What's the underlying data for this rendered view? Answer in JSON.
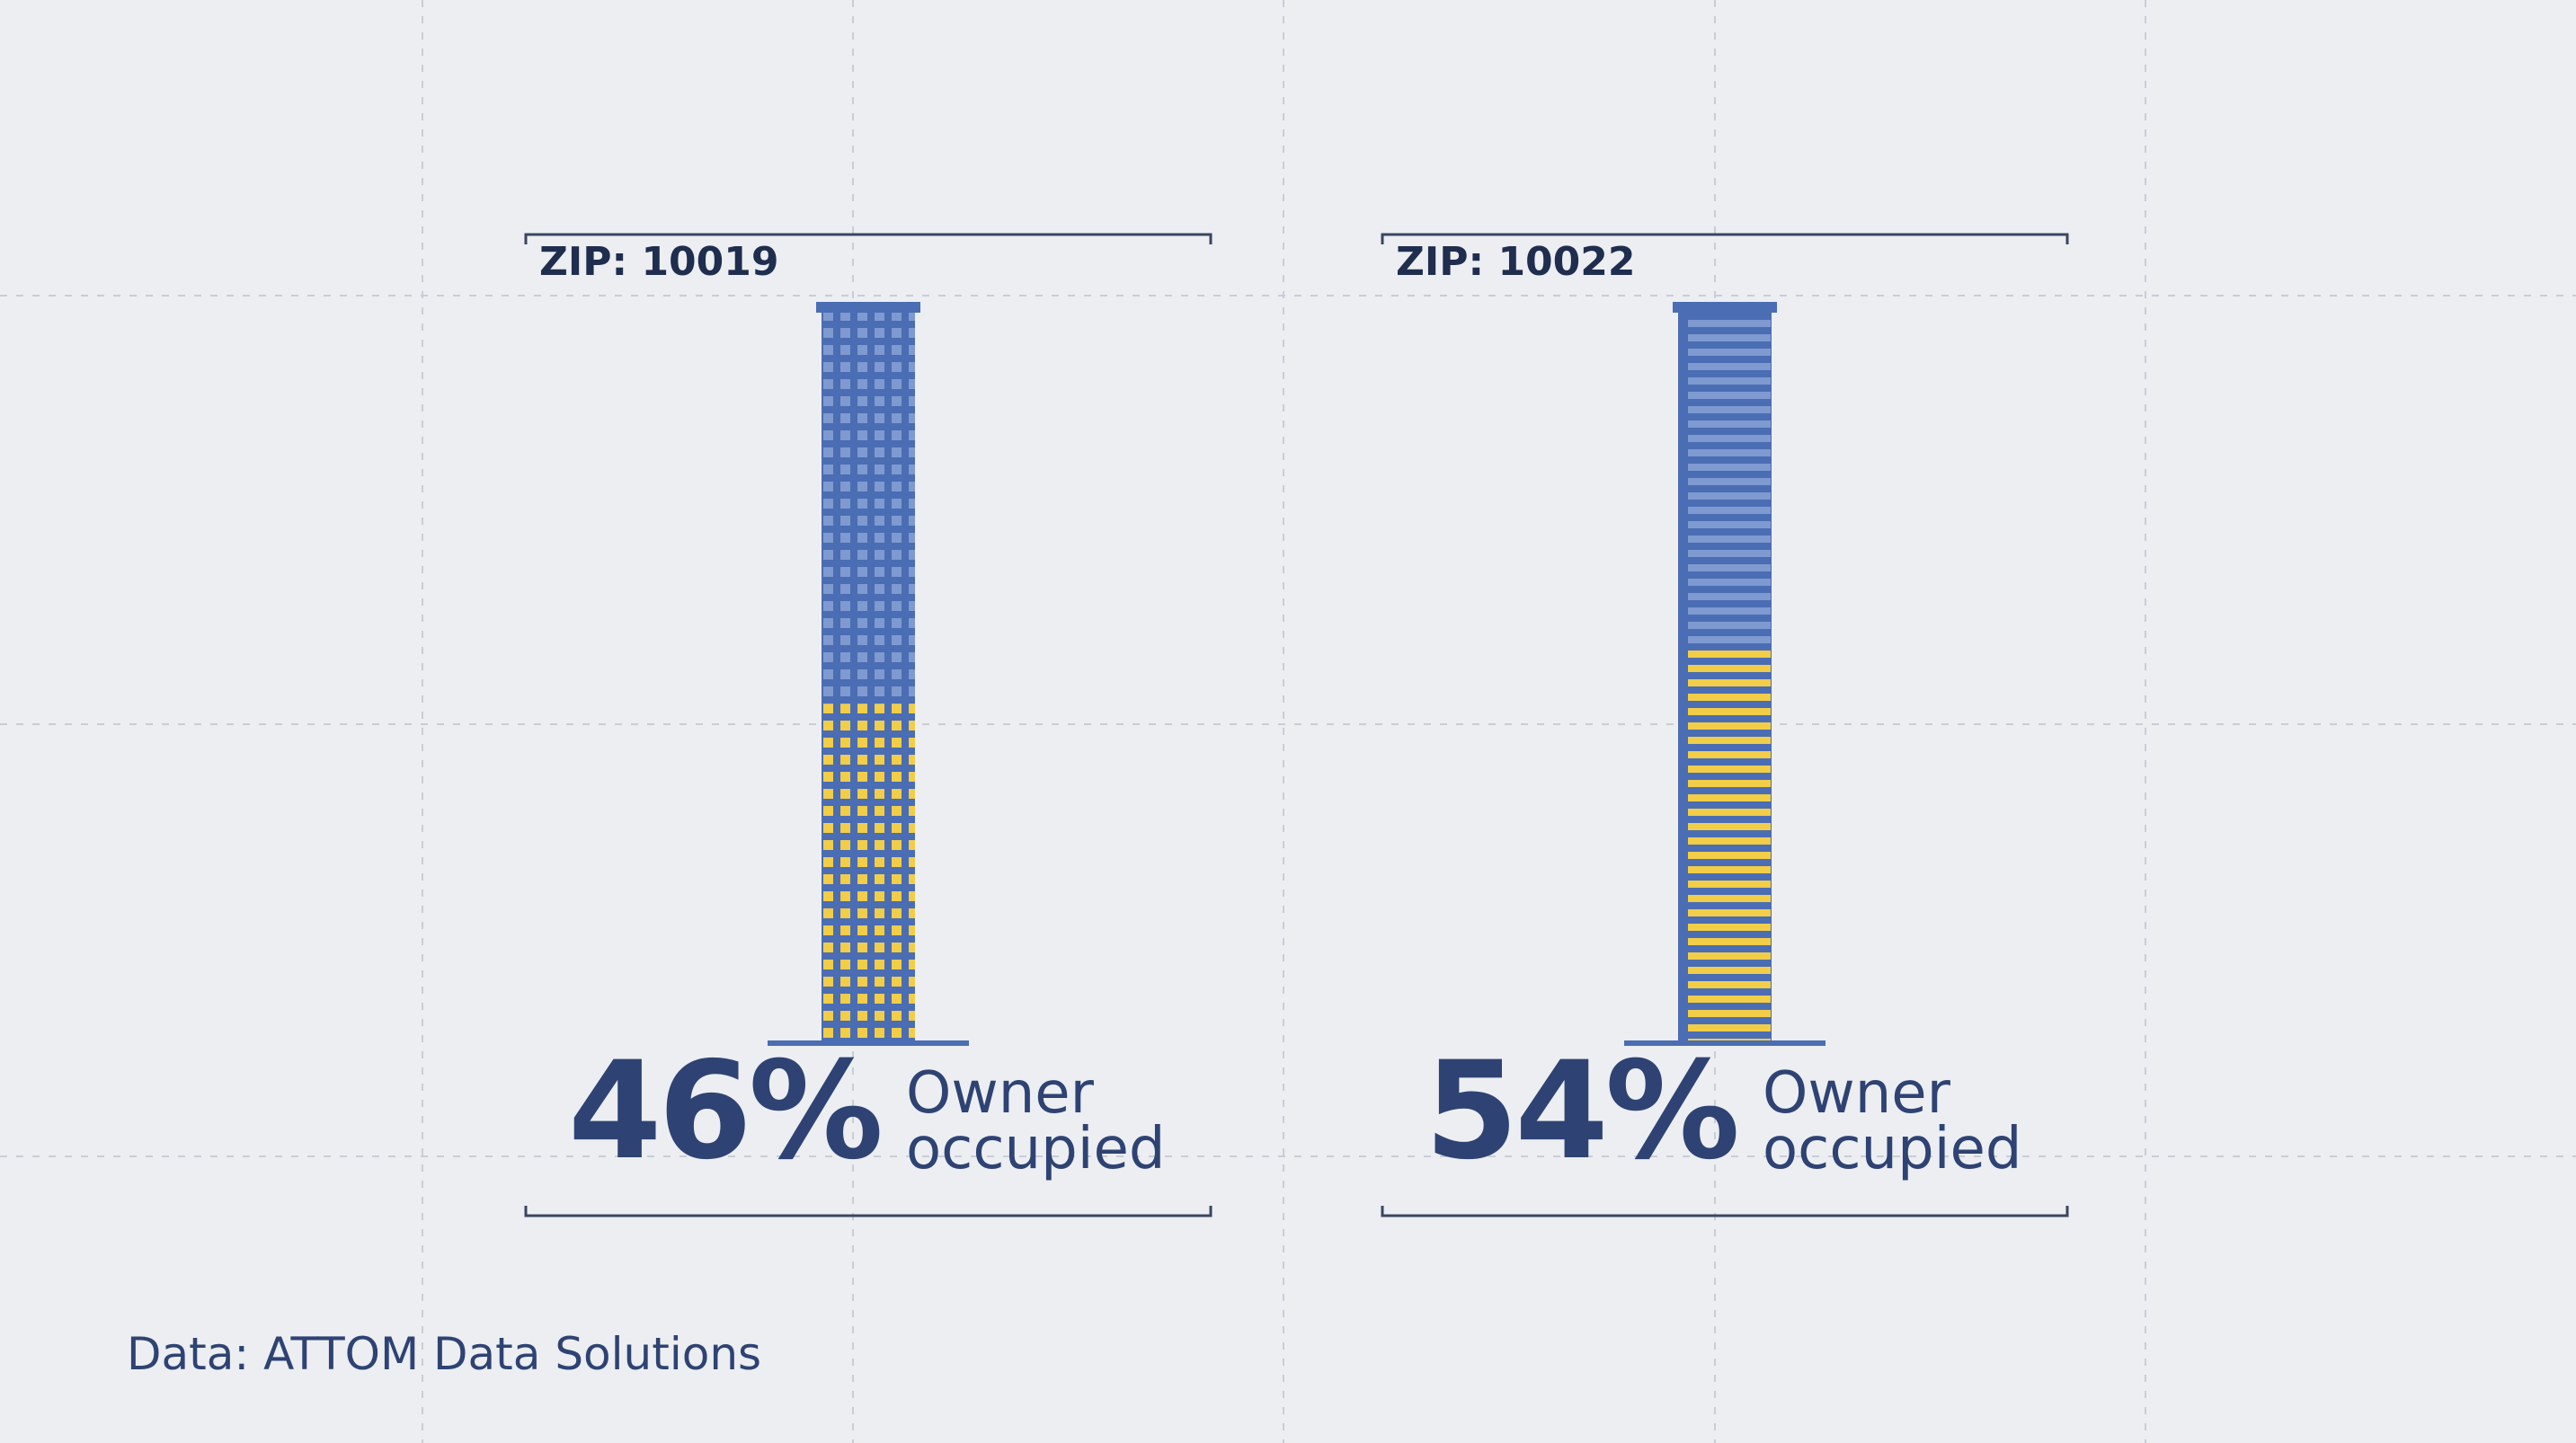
{
  "chart_data": {
    "type": "building",
    "categories": [
      "ZIP: 10019",
      "ZIP: 10022"
    ],
    "values": [
      46,
      54
    ],
    "value_labels": [
      "46%",
      "54%"
    ],
    "label": "Owner occupied",
    "patterns": [
      "grid",
      "stripes"
    ],
    "color": "#4a6db3",
    "window_color": "#7f9ad0",
    "highlight_color": "#f1cd48",
    "text_color": "#2e4373",
    "ylim": [
      0,
      100
    ],
    "source": "Data: ATTOM Data Solutions"
  }
}
